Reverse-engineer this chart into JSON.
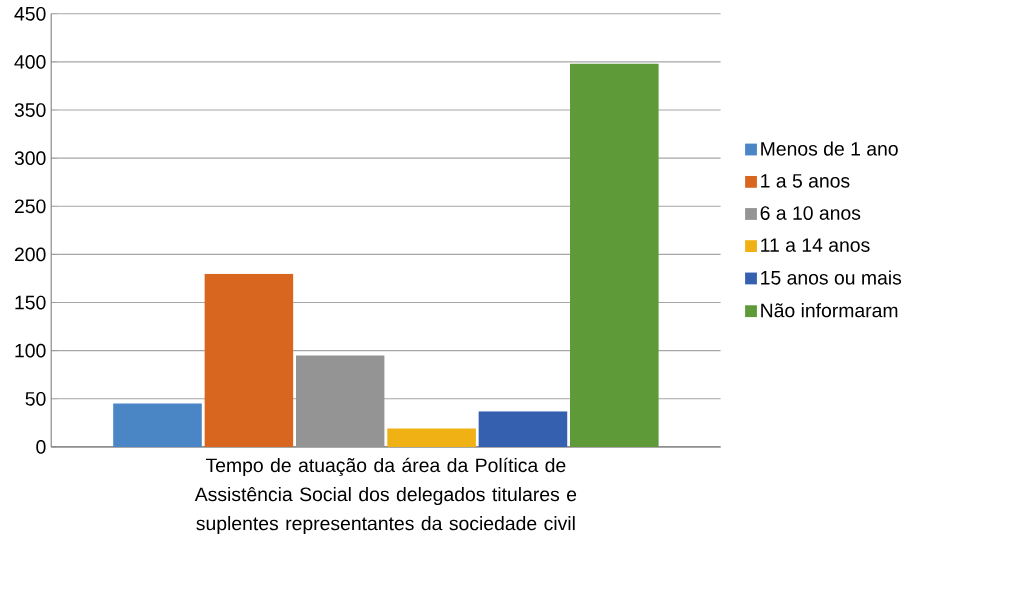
{
  "chart_data": {
    "type": "bar",
    "categories": [
      "Tempo de atuação da área da Política de Assistência Social dos delegados titulares e suplentes representantes da sociedade civil"
    ],
    "series": [
      {
        "name": "Menos de 1 ano",
        "color": "#4a86c5",
        "values": [
          45
        ]
      },
      {
        "name": "1 a 5 anos",
        "color": "#d9661f",
        "values": [
          180
        ]
      },
      {
        "name": "6 a 10 anos",
        "color": "#949494",
        "values": [
          95
        ]
      },
      {
        "name": "11 a 14 anos",
        "color": "#f0b114",
        "values": [
          19
        ]
      },
      {
        "name": "15 anos ou mais",
        "color": "#3560b0",
        "values": [
          37
        ]
      },
      {
        "name": "Não informaram",
        "color": "#5e9b38",
        "values": [
          398
        ]
      }
    ],
    "ylim": [
      0,
      450
    ],
    "yticks": [
      0,
      50,
      100,
      150,
      200,
      250,
      300,
      350,
      400,
      450
    ],
    "grid": "y",
    "legend": "right"
  }
}
